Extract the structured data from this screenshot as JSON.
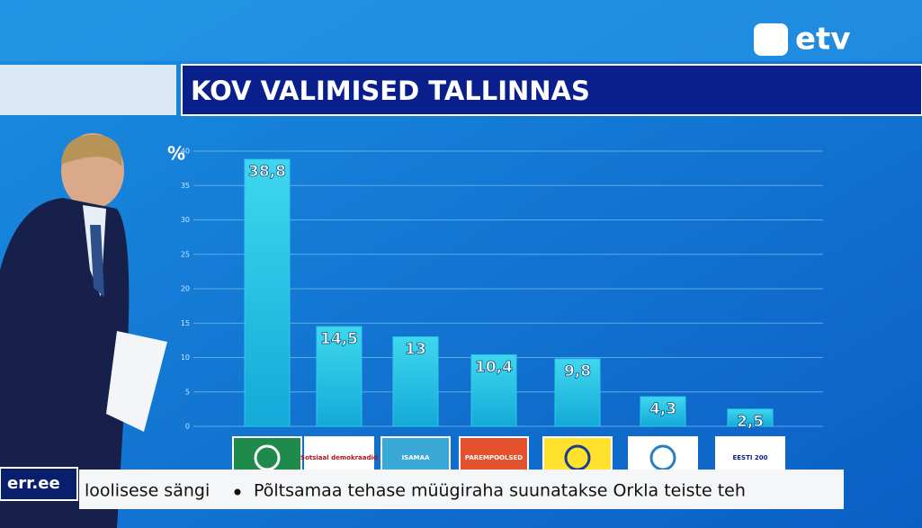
{
  "chart_data": {
    "type": "bar",
    "title": "KOV VALIMISED TALLINNAS",
    "y_label": "%",
    "categories": [
      null,
      "Sotsiaal demokraadid",
      "ISAMAA",
      "PAREMPOOLSED",
      null,
      null,
      "EESTI 200"
    ],
    "values": [
      38.8,
      14.5,
      13,
      10.4,
      9.8,
      4.3,
      2.5
    ],
    "value_labels": [
      "38,8",
      "14,5",
      "13",
      "10,4",
      "9,8",
      "4,3",
      "2,5"
    ],
    "color": "#2ccbe8",
    "ylim": [
      0,
      40
    ],
    "yticks": [
      0,
      5,
      10,
      15,
      20,
      25,
      30,
      35,
      40
    ],
    "grid": true
  },
  "broadcast": {
    "channel": "etv",
    "site": "err.ee",
    "ticker": [
      "loolisese sängi",
      "Põltsamaa tehase müügiraha suunatakse Orkla teiste teh"
    ]
  }
}
